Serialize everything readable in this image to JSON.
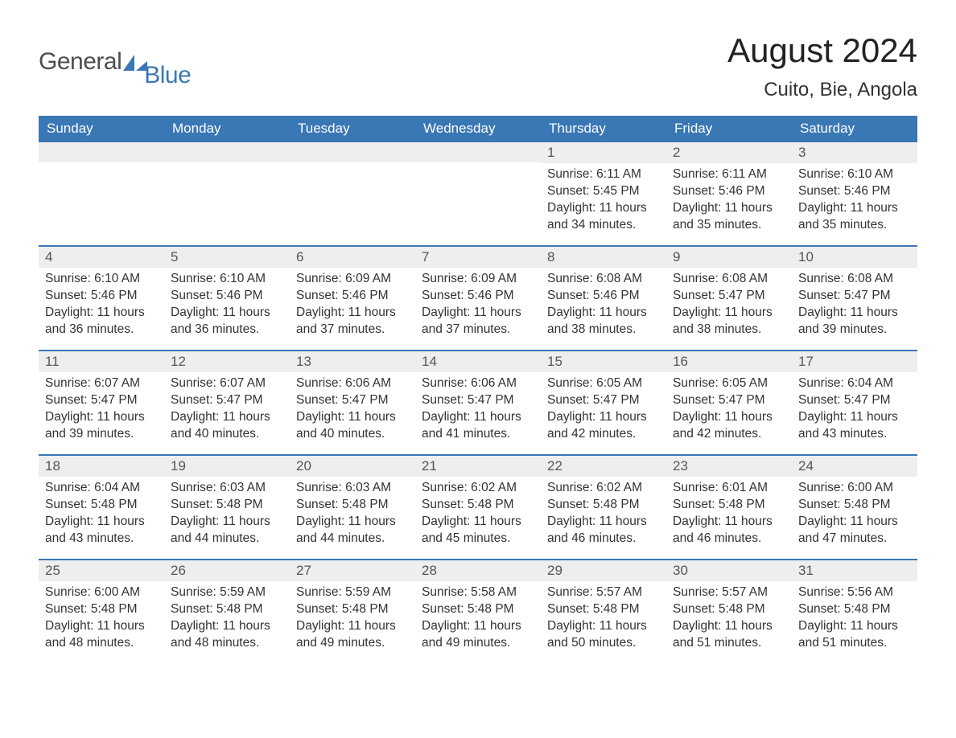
{
  "brand": {
    "part1": "General",
    "part2": "Blue",
    "text_color1": "#4d4d4d",
    "text_color2": "#3a77b5",
    "shape_color": "#3a77b5"
  },
  "title": "August 2024",
  "location": "Cuito, Bie, Angola",
  "colors": {
    "header_bg": "#3a77b5",
    "header_text": "#ffffff",
    "daynum_bg": "#eeeeee",
    "daynum_text": "#555555",
    "body_text": "#333333",
    "page_bg": "#ffffff",
    "week_border": "#3a77b5"
  },
  "dayheads": [
    "Sunday",
    "Monday",
    "Tuesday",
    "Wednesday",
    "Thursday",
    "Friday",
    "Saturday"
  ],
  "weeks": [
    [
      {
        "n": "",
        "sunrise": "",
        "sunset": "",
        "day1": "",
        "day2": ""
      },
      {
        "n": "",
        "sunrise": "",
        "sunset": "",
        "day1": "",
        "day2": ""
      },
      {
        "n": "",
        "sunrise": "",
        "sunset": "",
        "day1": "",
        "day2": ""
      },
      {
        "n": "",
        "sunrise": "",
        "sunset": "",
        "day1": "",
        "day2": ""
      },
      {
        "n": "1",
        "sunrise": "Sunrise: 6:11 AM",
        "sunset": "Sunset: 5:45 PM",
        "day1": "Daylight: 11 hours",
        "day2": "and 34 minutes."
      },
      {
        "n": "2",
        "sunrise": "Sunrise: 6:11 AM",
        "sunset": "Sunset: 5:46 PM",
        "day1": "Daylight: 11 hours",
        "day2": "and 35 minutes."
      },
      {
        "n": "3",
        "sunrise": "Sunrise: 6:10 AM",
        "sunset": "Sunset: 5:46 PM",
        "day1": "Daylight: 11 hours",
        "day2": "and 35 minutes."
      }
    ],
    [
      {
        "n": "4",
        "sunrise": "Sunrise: 6:10 AM",
        "sunset": "Sunset: 5:46 PM",
        "day1": "Daylight: 11 hours",
        "day2": "and 36 minutes."
      },
      {
        "n": "5",
        "sunrise": "Sunrise: 6:10 AM",
        "sunset": "Sunset: 5:46 PM",
        "day1": "Daylight: 11 hours",
        "day2": "and 36 minutes."
      },
      {
        "n": "6",
        "sunrise": "Sunrise: 6:09 AM",
        "sunset": "Sunset: 5:46 PM",
        "day1": "Daylight: 11 hours",
        "day2": "and 37 minutes."
      },
      {
        "n": "7",
        "sunrise": "Sunrise: 6:09 AM",
        "sunset": "Sunset: 5:46 PM",
        "day1": "Daylight: 11 hours",
        "day2": "and 37 minutes."
      },
      {
        "n": "8",
        "sunrise": "Sunrise: 6:08 AM",
        "sunset": "Sunset: 5:46 PM",
        "day1": "Daylight: 11 hours",
        "day2": "and 38 minutes."
      },
      {
        "n": "9",
        "sunrise": "Sunrise: 6:08 AM",
        "sunset": "Sunset: 5:47 PM",
        "day1": "Daylight: 11 hours",
        "day2": "and 38 minutes."
      },
      {
        "n": "10",
        "sunrise": "Sunrise: 6:08 AM",
        "sunset": "Sunset: 5:47 PM",
        "day1": "Daylight: 11 hours",
        "day2": "and 39 minutes."
      }
    ],
    [
      {
        "n": "11",
        "sunrise": "Sunrise: 6:07 AM",
        "sunset": "Sunset: 5:47 PM",
        "day1": "Daylight: 11 hours",
        "day2": "and 39 minutes."
      },
      {
        "n": "12",
        "sunrise": "Sunrise: 6:07 AM",
        "sunset": "Sunset: 5:47 PM",
        "day1": "Daylight: 11 hours",
        "day2": "and 40 minutes."
      },
      {
        "n": "13",
        "sunrise": "Sunrise: 6:06 AM",
        "sunset": "Sunset: 5:47 PM",
        "day1": "Daylight: 11 hours",
        "day2": "and 40 minutes."
      },
      {
        "n": "14",
        "sunrise": "Sunrise: 6:06 AM",
        "sunset": "Sunset: 5:47 PM",
        "day1": "Daylight: 11 hours",
        "day2": "and 41 minutes."
      },
      {
        "n": "15",
        "sunrise": "Sunrise: 6:05 AM",
        "sunset": "Sunset: 5:47 PM",
        "day1": "Daylight: 11 hours",
        "day2": "and 42 minutes."
      },
      {
        "n": "16",
        "sunrise": "Sunrise: 6:05 AM",
        "sunset": "Sunset: 5:47 PM",
        "day1": "Daylight: 11 hours",
        "day2": "and 42 minutes."
      },
      {
        "n": "17",
        "sunrise": "Sunrise: 6:04 AM",
        "sunset": "Sunset: 5:47 PM",
        "day1": "Daylight: 11 hours",
        "day2": "and 43 minutes."
      }
    ],
    [
      {
        "n": "18",
        "sunrise": "Sunrise: 6:04 AM",
        "sunset": "Sunset: 5:48 PM",
        "day1": "Daylight: 11 hours",
        "day2": "and 43 minutes."
      },
      {
        "n": "19",
        "sunrise": "Sunrise: 6:03 AM",
        "sunset": "Sunset: 5:48 PM",
        "day1": "Daylight: 11 hours",
        "day2": "and 44 minutes."
      },
      {
        "n": "20",
        "sunrise": "Sunrise: 6:03 AM",
        "sunset": "Sunset: 5:48 PM",
        "day1": "Daylight: 11 hours",
        "day2": "and 44 minutes."
      },
      {
        "n": "21",
        "sunrise": "Sunrise: 6:02 AM",
        "sunset": "Sunset: 5:48 PM",
        "day1": "Daylight: 11 hours",
        "day2": "and 45 minutes."
      },
      {
        "n": "22",
        "sunrise": "Sunrise: 6:02 AM",
        "sunset": "Sunset: 5:48 PM",
        "day1": "Daylight: 11 hours",
        "day2": "and 46 minutes."
      },
      {
        "n": "23",
        "sunrise": "Sunrise: 6:01 AM",
        "sunset": "Sunset: 5:48 PM",
        "day1": "Daylight: 11 hours",
        "day2": "and 46 minutes."
      },
      {
        "n": "24",
        "sunrise": "Sunrise: 6:00 AM",
        "sunset": "Sunset: 5:48 PM",
        "day1": "Daylight: 11 hours",
        "day2": "and 47 minutes."
      }
    ],
    [
      {
        "n": "25",
        "sunrise": "Sunrise: 6:00 AM",
        "sunset": "Sunset: 5:48 PM",
        "day1": "Daylight: 11 hours",
        "day2": "and 48 minutes."
      },
      {
        "n": "26",
        "sunrise": "Sunrise: 5:59 AM",
        "sunset": "Sunset: 5:48 PM",
        "day1": "Daylight: 11 hours",
        "day2": "and 48 minutes."
      },
      {
        "n": "27",
        "sunrise": "Sunrise: 5:59 AM",
        "sunset": "Sunset: 5:48 PM",
        "day1": "Daylight: 11 hours",
        "day2": "and 49 minutes."
      },
      {
        "n": "28",
        "sunrise": "Sunrise: 5:58 AM",
        "sunset": "Sunset: 5:48 PM",
        "day1": "Daylight: 11 hours",
        "day2": "and 49 minutes."
      },
      {
        "n": "29",
        "sunrise": "Sunrise: 5:57 AM",
        "sunset": "Sunset: 5:48 PM",
        "day1": "Daylight: 11 hours",
        "day2": "and 50 minutes."
      },
      {
        "n": "30",
        "sunrise": "Sunrise: 5:57 AM",
        "sunset": "Sunset: 5:48 PM",
        "day1": "Daylight: 11 hours",
        "day2": "and 51 minutes."
      },
      {
        "n": "31",
        "sunrise": "Sunrise: 5:56 AM",
        "sunset": "Sunset: 5:48 PM",
        "day1": "Daylight: 11 hours",
        "day2": "and 51 minutes."
      }
    ]
  ]
}
